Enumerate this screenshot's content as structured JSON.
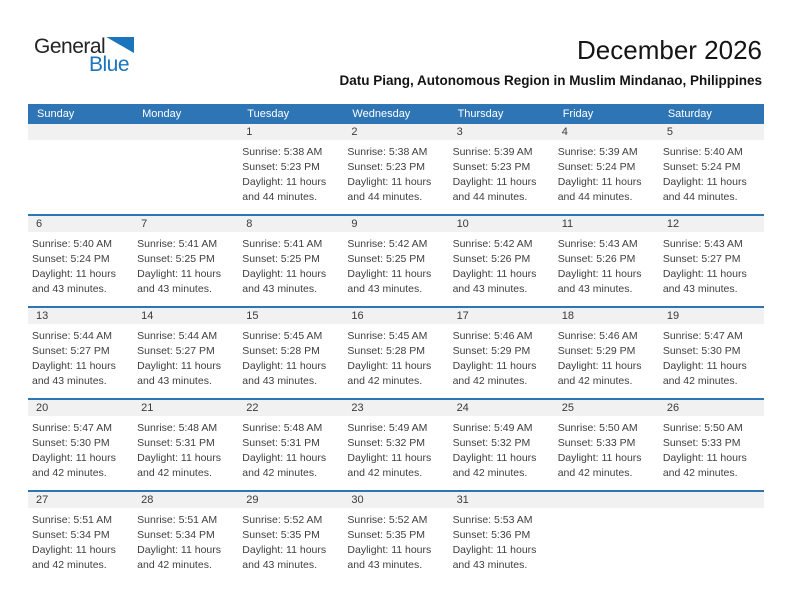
{
  "logo": {
    "general": "General",
    "blue": "Blue"
  },
  "header": {
    "title": "December 2026",
    "location": "Datu Piang, Autonomous Region in Muslim Mindanao, Philippines"
  },
  "colors": {
    "header_blue": "#2E75B5",
    "band_gray": "#F1F1F1",
    "accent_blue": "#1B75BC",
    "text_dark": "#3F3F3F"
  },
  "calendar": {
    "day_headers": [
      "Sunday",
      "Monday",
      "Tuesday",
      "Wednesday",
      "Thursday",
      "Friday",
      "Saturday"
    ],
    "weeks": [
      [
        null,
        null,
        {
          "day": "1",
          "sunrise": "Sunrise: 5:38 AM",
          "sunset": "Sunset: 5:23 PM",
          "daylight1": "Daylight: 11 hours",
          "daylight2": "and 44 minutes."
        },
        {
          "day": "2",
          "sunrise": "Sunrise: 5:38 AM",
          "sunset": "Sunset: 5:23 PM",
          "daylight1": "Daylight: 11 hours",
          "daylight2": "and 44 minutes."
        },
        {
          "day": "3",
          "sunrise": "Sunrise: 5:39 AM",
          "sunset": "Sunset: 5:23 PM",
          "daylight1": "Daylight: 11 hours",
          "daylight2": "and 44 minutes."
        },
        {
          "day": "4",
          "sunrise": "Sunrise: 5:39 AM",
          "sunset": "Sunset: 5:24 PM",
          "daylight1": "Daylight: 11 hours",
          "daylight2": "and 44 minutes."
        },
        {
          "day": "5",
          "sunrise": "Sunrise: 5:40 AM",
          "sunset": "Sunset: 5:24 PM",
          "daylight1": "Daylight: 11 hours",
          "daylight2": "and 44 minutes."
        }
      ],
      [
        {
          "day": "6",
          "sunrise": "Sunrise: 5:40 AM",
          "sunset": "Sunset: 5:24 PM",
          "daylight1": "Daylight: 11 hours",
          "daylight2": "and 43 minutes."
        },
        {
          "day": "7",
          "sunrise": "Sunrise: 5:41 AM",
          "sunset": "Sunset: 5:25 PM",
          "daylight1": "Daylight: 11 hours",
          "daylight2": "and 43 minutes."
        },
        {
          "day": "8",
          "sunrise": "Sunrise: 5:41 AM",
          "sunset": "Sunset: 5:25 PM",
          "daylight1": "Daylight: 11 hours",
          "daylight2": "and 43 minutes."
        },
        {
          "day": "9",
          "sunrise": "Sunrise: 5:42 AM",
          "sunset": "Sunset: 5:25 PM",
          "daylight1": "Daylight: 11 hours",
          "daylight2": "and 43 minutes."
        },
        {
          "day": "10",
          "sunrise": "Sunrise: 5:42 AM",
          "sunset": "Sunset: 5:26 PM",
          "daylight1": "Daylight: 11 hours",
          "daylight2": "and 43 minutes."
        },
        {
          "day": "11",
          "sunrise": "Sunrise: 5:43 AM",
          "sunset": "Sunset: 5:26 PM",
          "daylight1": "Daylight: 11 hours",
          "daylight2": "and 43 minutes."
        },
        {
          "day": "12",
          "sunrise": "Sunrise: 5:43 AM",
          "sunset": "Sunset: 5:27 PM",
          "daylight1": "Daylight: 11 hours",
          "daylight2": "and 43 minutes."
        }
      ],
      [
        {
          "day": "13",
          "sunrise": "Sunrise: 5:44 AM",
          "sunset": "Sunset: 5:27 PM",
          "daylight1": "Daylight: 11 hours",
          "daylight2": "and 43 minutes."
        },
        {
          "day": "14",
          "sunrise": "Sunrise: 5:44 AM",
          "sunset": "Sunset: 5:27 PM",
          "daylight1": "Daylight: 11 hours",
          "daylight2": "and 43 minutes."
        },
        {
          "day": "15",
          "sunrise": "Sunrise: 5:45 AM",
          "sunset": "Sunset: 5:28 PM",
          "daylight1": "Daylight: 11 hours",
          "daylight2": "and 43 minutes."
        },
        {
          "day": "16",
          "sunrise": "Sunrise: 5:45 AM",
          "sunset": "Sunset: 5:28 PM",
          "daylight1": "Daylight: 11 hours",
          "daylight2": "and 42 minutes."
        },
        {
          "day": "17",
          "sunrise": "Sunrise: 5:46 AM",
          "sunset": "Sunset: 5:29 PM",
          "daylight1": "Daylight: 11 hours",
          "daylight2": "and 42 minutes."
        },
        {
          "day": "18",
          "sunrise": "Sunrise: 5:46 AM",
          "sunset": "Sunset: 5:29 PM",
          "daylight1": "Daylight: 11 hours",
          "daylight2": "and 42 minutes."
        },
        {
          "day": "19",
          "sunrise": "Sunrise: 5:47 AM",
          "sunset": "Sunset: 5:30 PM",
          "daylight1": "Daylight: 11 hours",
          "daylight2": "and 42 minutes."
        }
      ],
      [
        {
          "day": "20",
          "sunrise": "Sunrise: 5:47 AM",
          "sunset": "Sunset: 5:30 PM",
          "daylight1": "Daylight: 11 hours",
          "daylight2": "and 42 minutes."
        },
        {
          "day": "21",
          "sunrise": "Sunrise: 5:48 AM",
          "sunset": "Sunset: 5:31 PM",
          "daylight1": "Daylight: 11 hours",
          "daylight2": "and 42 minutes."
        },
        {
          "day": "22",
          "sunrise": "Sunrise: 5:48 AM",
          "sunset": "Sunset: 5:31 PM",
          "daylight1": "Daylight: 11 hours",
          "daylight2": "and 42 minutes."
        },
        {
          "day": "23",
          "sunrise": "Sunrise: 5:49 AM",
          "sunset": "Sunset: 5:32 PM",
          "daylight1": "Daylight: 11 hours",
          "daylight2": "and 42 minutes."
        },
        {
          "day": "24",
          "sunrise": "Sunrise: 5:49 AM",
          "sunset": "Sunset: 5:32 PM",
          "daylight1": "Daylight: 11 hours",
          "daylight2": "and 42 minutes."
        },
        {
          "day": "25",
          "sunrise": "Sunrise: 5:50 AM",
          "sunset": "Sunset: 5:33 PM",
          "daylight1": "Daylight: 11 hours",
          "daylight2": "and 42 minutes."
        },
        {
          "day": "26",
          "sunrise": "Sunrise: 5:50 AM",
          "sunset": "Sunset: 5:33 PM",
          "daylight1": "Daylight: 11 hours",
          "daylight2": "and 42 minutes."
        }
      ],
      [
        {
          "day": "27",
          "sunrise": "Sunrise: 5:51 AM",
          "sunset": "Sunset: 5:34 PM",
          "daylight1": "Daylight: 11 hours",
          "daylight2": "and 42 minutes."
        },
        {
          "day": "28",
          "sunrise": "Sunrise: 5:51 AM",
          "sunset": "Sunset: 5:34 PM",
          "daylight1": "Daylight: 11 hours",
          "daylight2": "and 42 minutes."
        },
        {
          "day": "29",
          "sunrise": "Sunrise: 5:52 AM",
          "sunset": "Sunset: 5:35 PM",
          "daylight1": "Daylight: 11 hours",
          "daylight2": "and 43 minutes."
        },
        {
          "day": "30",
          "sunrise": "Sunrise: 5:52 AM",
          "sunset": "Sunset: 5:35 PM",
          "daylight1": "Daylight: 11 hours",
          "daylight2": "and 43 minutes."
        },
        {
          "day": "31",
          "sunrise": "Sunrise: 5:53 AM",
          "sunset": "Sunset: 5:36 PM",
          "daylight1": "Daylight: 11 hours",
          "daylight2": "and 43 minutes."
        },
        null,
        null
      ]
    ]
  }
}
